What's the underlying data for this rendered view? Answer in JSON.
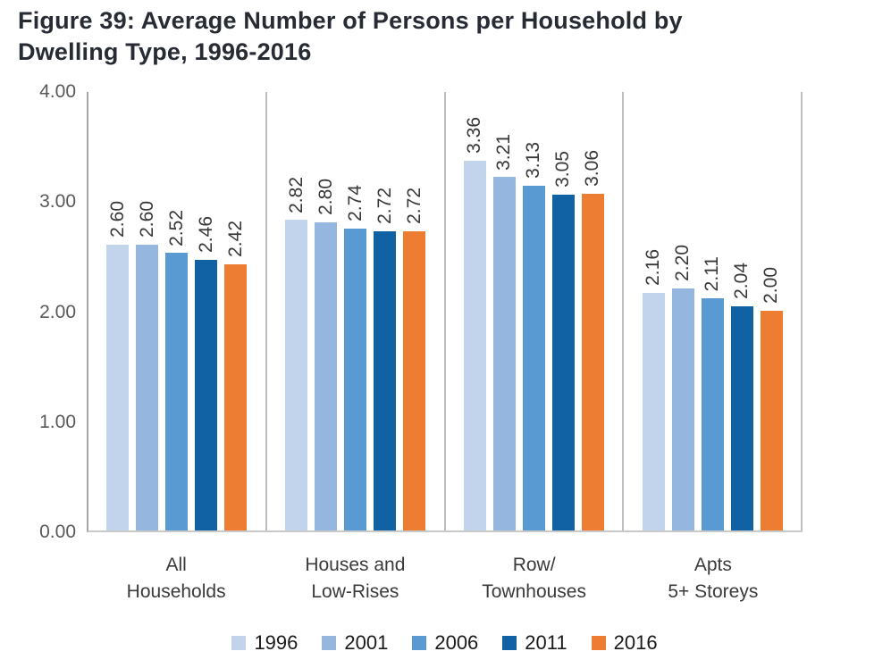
{
  "title": "Figure 39: Average Number of Persons per Household by Dwelling Type, 1996-2016",
  "chart_data": {
    "type": "bar",
    "title": "Figure 39: Average Number of Persons per Household by Dwelling Type, 1996-2016",
    "categories": [
      [
        "All",
        "Households"
      ],
      [
        "Houses and",
        "Low-Rises"
      ],
      [
        "Row/",
        "Townhouses"
      ],
      [
        "Apts",
        "5+ Storeys"
      ]
    ],
    "series": [
      {
        "name": "1996",
        "color": "#c2d4eb",
        "values": [
          2.6,
          2.82,
          3.36,
          2.16
        ]
      },
      {
        "name": "2001",
        "color": "#95b6df",
        "values": [
          2.6,
          2.8,
          3.21,
          2.2
        ]
      },
      {
        "name": "2006",
        "color": "#599ad3",
        "values": [
          2.52,
          2.74,
          3.13,
          2.11
        ]
      },
      {
        "name": "2011",
        "color": "#1161a5",
        "values": [
          2.46,
          2.72,
          3.05,
          2.04
        ]
      },
      {
        "name": "2016",
        "color": "#ec7d33",
        "values": [
          2.42,
          2.72,
          3.06,
          2.0
        ]
      }
    ],
    "xlabel": "",
    "ylabel": "",
    "ylim": [
      0,
      4
    ],
    "yticks": [
      "0.00",
      "1.00",
      "2.00",
      "3.00",
      "4.00"
    ],
    "value_label_decimals": 2,
    "value_labels_rotated": true,
    "grid": "vertical-category-separators",
    "legend_position": "bottom",
    "colors": {
      "title_text": "#272b33",
      "axis_line": "#a6a6a6",
      "separator_line": "#bdbdbd",
      "baseline": "#c9c9c9",
      "tick_text": "#595959",
      "value_text": "#383838",
      "category_text": "#3a3a3a",
      "legend_text": "#1a1a1a"
    }
  }
}
